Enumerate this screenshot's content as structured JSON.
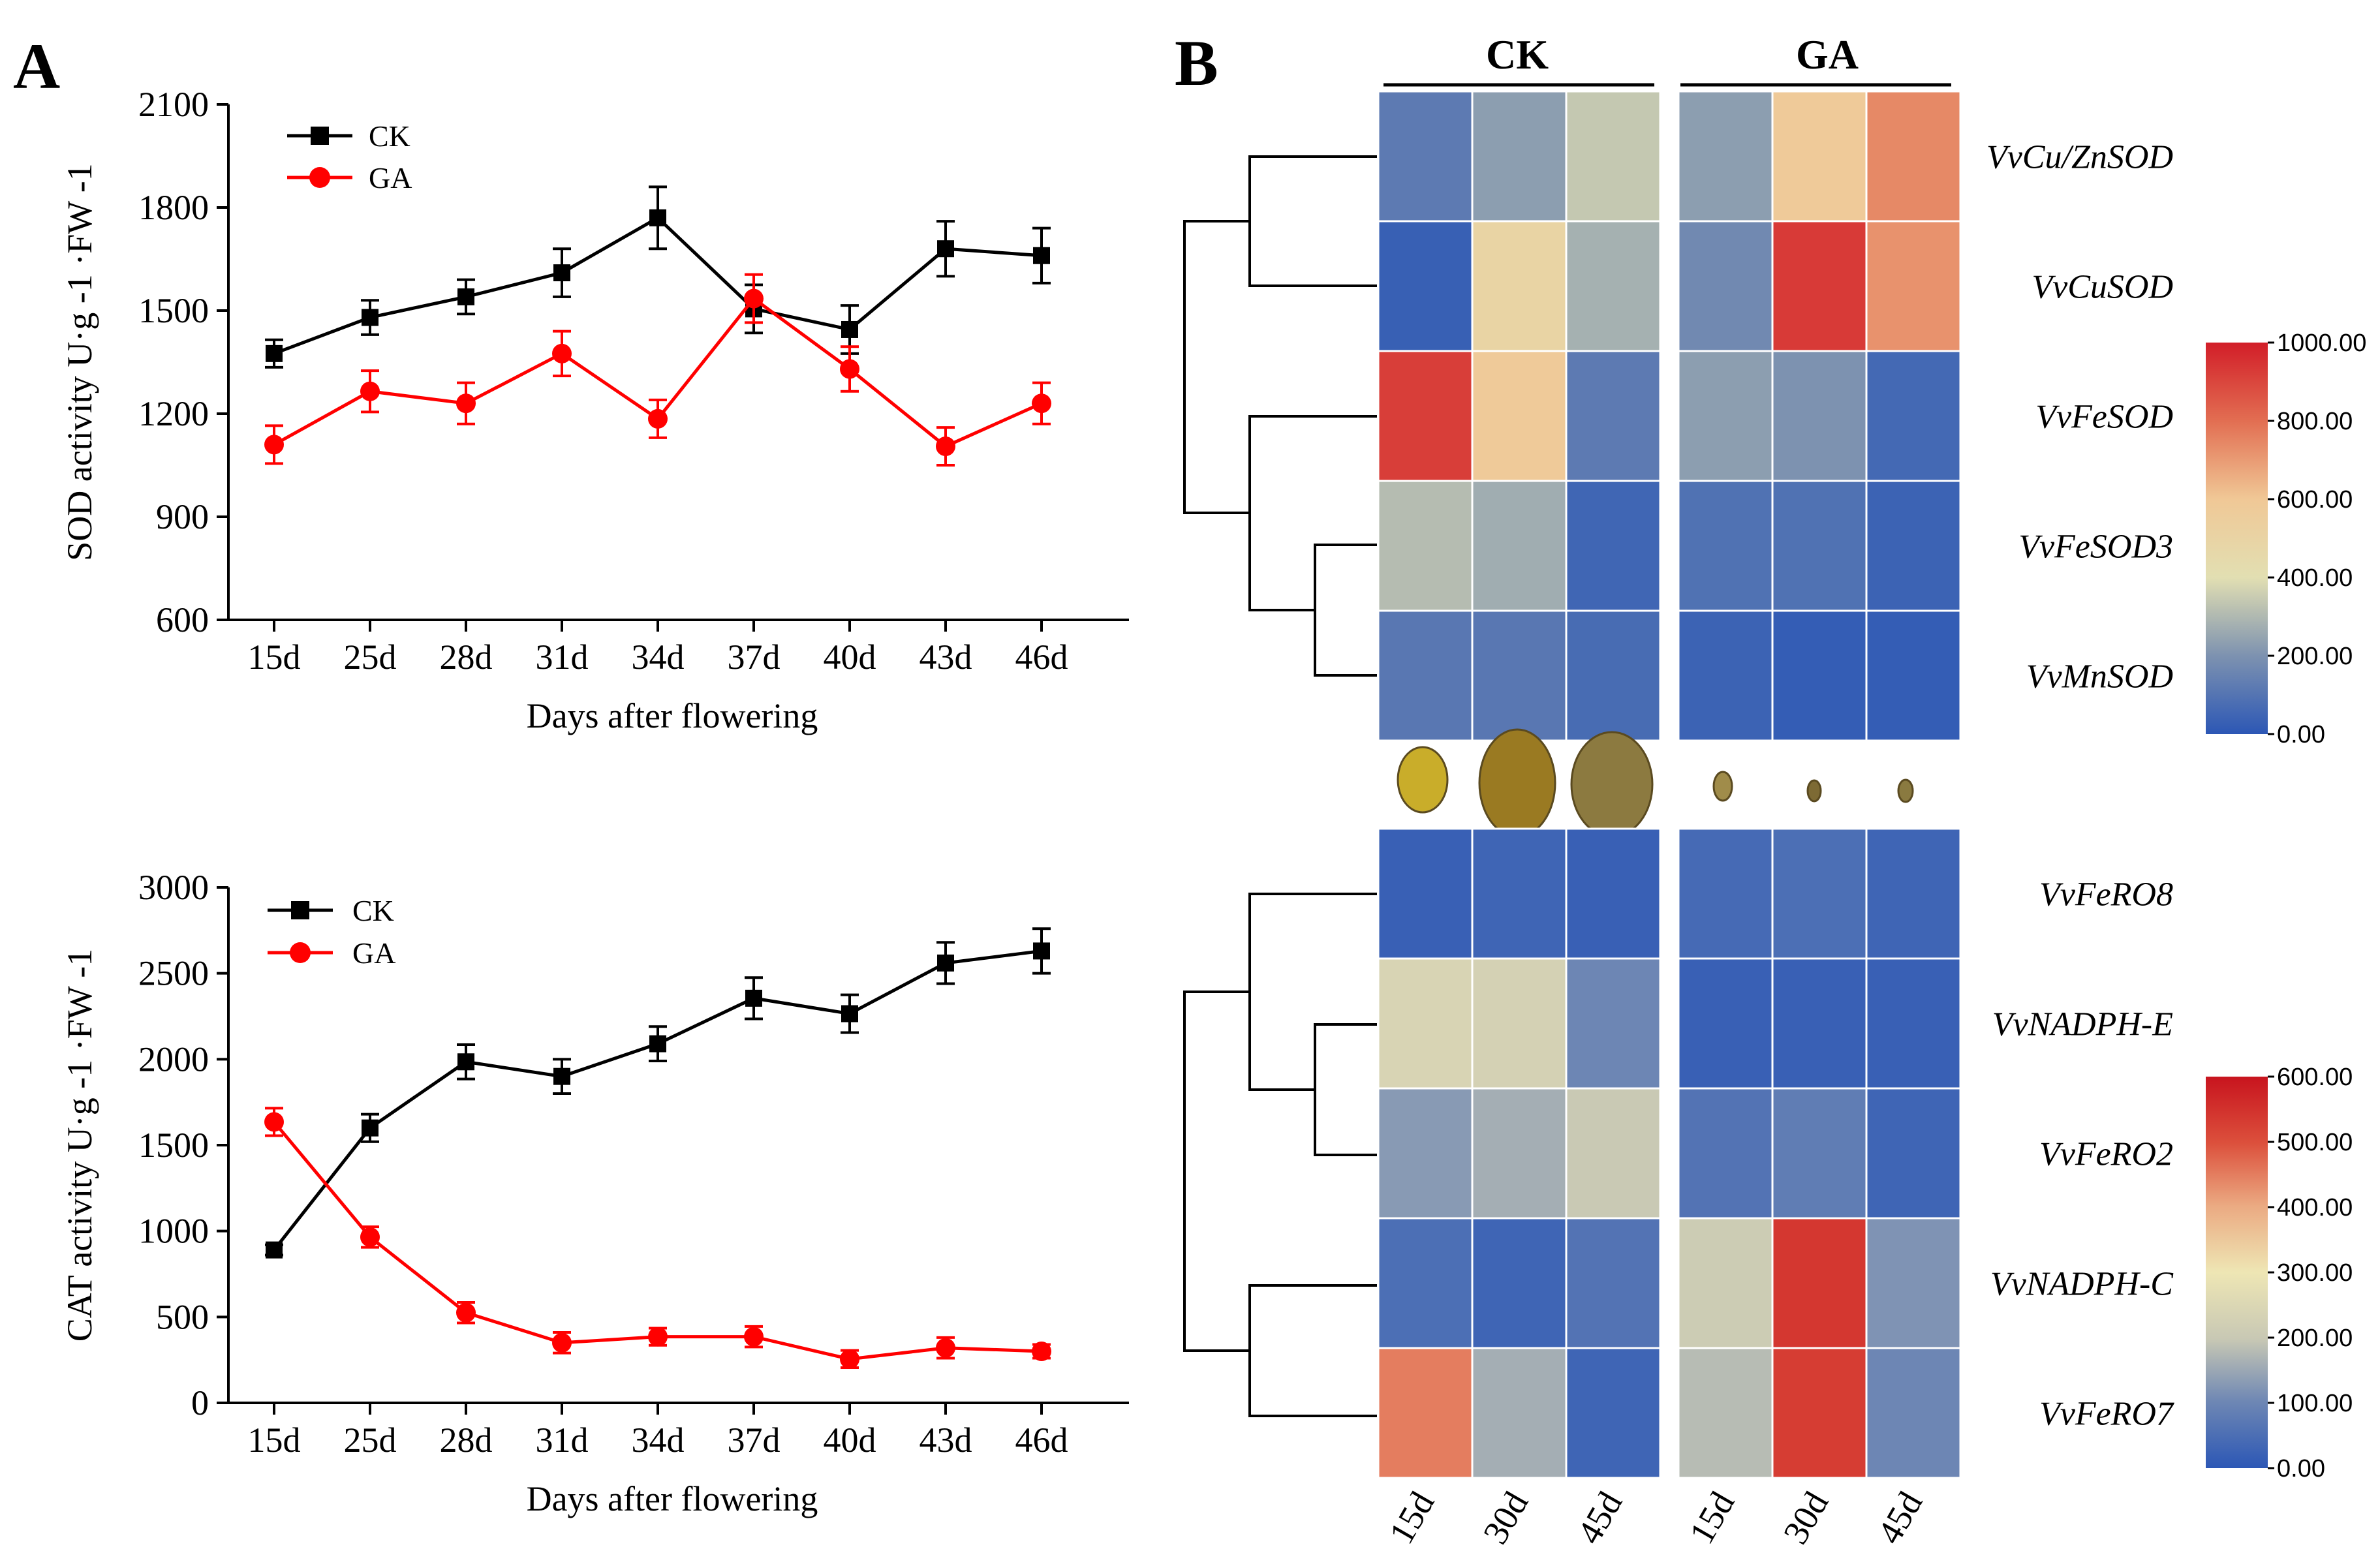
{
  "panels": {
    "a": "A",
    "b": "B"
  },
  "chart_data": [
    {
      "type": "line",
      "id": "sod",
      "ylabel": "SOD activity U·g -1 ·FW -1",
      "xlabel": "Days after flowering",
      "categories": [
        "15d",
        "25d",
        "28d",
        "31d",
        "34d",
        "37d",
        "40d",
        "43d",
        "46d"
      ],
      "ylim": [
        600,
        2100
      ],
      "yticks": [
        600,
        900,
        1200,
        1500,
        1800,
        2100
      ],
      "legend_position": "top-left",
      "series": [
        {
          "name": "CK",
          "color": "#000000",
          "marker": "square",
          "values": [
            1375,
            1480,
            1540,
            1610,
            1770,
            1505,
            1445,
            1680,
            1660
          ],
          "errors": [
            40,
            50,
            50,
            70,
            90,
            70,
            70,
            80,
            80
          ]
        },
        {
          "name": "GA",
          "color": "#ff0000",
          "marker": "circle",
          "values": [
            1110,
            1265,
            1230,
            1375,
            1185,
            1535,
            1330,
            1105,
            1230
          ],
          "errors": [
            55,
            60,
            60,
            65,
            55,
            70,
            65,
            55,
            60
          ]
        }
      ]
    },
    {
      "type": "line",
      "id": "cat",
      "ylabel": "CAT activity U·g -1 ·FW -1",
      "xlabel": "Days after flowering",
      "categories": [
        "15d",
        "25d",
        "28d",
        "31d",
        "34d",
        "37d",
        "40d",
        "43d",
        "46d"
      ],
      "ylim": [
        0,
        3000
      ],
      "yticks": [
        0,
        500,
        1000,
        1500,
        2000,
        2500,
        3000
      ],
      "legend_position": "top-left",
      "series": [
        {
          "name": "CK",
          "color": "#000000",
          "marker": "square",
          "values": [
            890,
            1600,
            1985,
            1900,
            2090,
            2355,
            2265,
            2560,
            2630
          ],
          "errors": [
            30,
            80,
            100,
            100,
            100,
            120,
            110,
            120,
            130
          ]
        },
        {
          "name": "GA",
          "color": "#ff0000",
          "marker": "circle",
          "values": [
            1635,
            965,
            525,
            350,
            385,
            385,
            255,
            320,
            300
          ],
          "errors": [
            80,
            60,
            60,
            60,
            50,
            60,
            50,
            60,
            40
          ]
        }
      ]
    },
    {
      "type": "heatmap",
      "id": "heatmap-sod",
      "groups": [
        "CK",
        "GA"
      ],
      "columns": [
        "15d",
        "30d",
        "45d"
      ],
      "rows": [
        "VvCu/ZnSOD",
        "VvCuSOD",
        "VvFeSOD",
        "VvFeSOD3",
        "VvMnSOD"
      ],
      "values": [
        [
          120,
          230,
          340,
          230,
          580,
          740
        ],
        [
          30,
          500,
          280,
          170,
          930,
          720
        ],
        [
          920,
          580,
          120,
          230,
          200,
          60
        ],
        [
          310,
          270,
          50,
          90,
          90,
          40
        ],
        [
          110,
          110,
          70,
          40,
          20,
          20
        ]
      ],
      "colorbar": {
        "min": 0,
        "max": 1000,
        "ticks": [
          "0.00",
          "200.00",
          "400.00",
          "600.00",
          "800.00",
          "1000.00"
        ]
      }
    },
    {
      "type": "heatmap",
      "id": "heatmap-nox",
      "groups": [
        "CK",
        "GA"
      ],
      "columns": [
        "15d",
        "30d",
        "45d"
      ],
      "rows": [
        "VvFeRO8",
        "VvNADPH-E",
        "VvFeRO2",
        "VvNADPH-C",
        "VvFeRO7"
      ],
      "values": [
        [
          20,
          30,
          20,
          40,
          50,
          30
        ],
        [
          240,
          230,
          100,
          20,
          20,
          20
        ],
        [
          130,
          160,
          200,
          60,
          80,
          30
        ],
        [
          50,
          30,
          60,
          210,
          540,
          120
        ],
        [
          450,
          160,
          30,
          180,
          530,
          100
        ]
      ],
      "colorbar": {
        "min": 0,
        "max": 600,
        "ticks": [
          "0.00",
          "100.00",
          "200.00",
          "300.00",
          "400.00",
          "500.00",
          "600.00"
        ]
      }
    }
  ],
  "fruits": {
    "ck": [
      "#8d7e3c",
      "#c9ad2a",
      "#9a7a22"
    ],
    "ga": [
      "#8c7a40",
      "#a08c4a",
      "#7d6a34"
    ]
  }
}
